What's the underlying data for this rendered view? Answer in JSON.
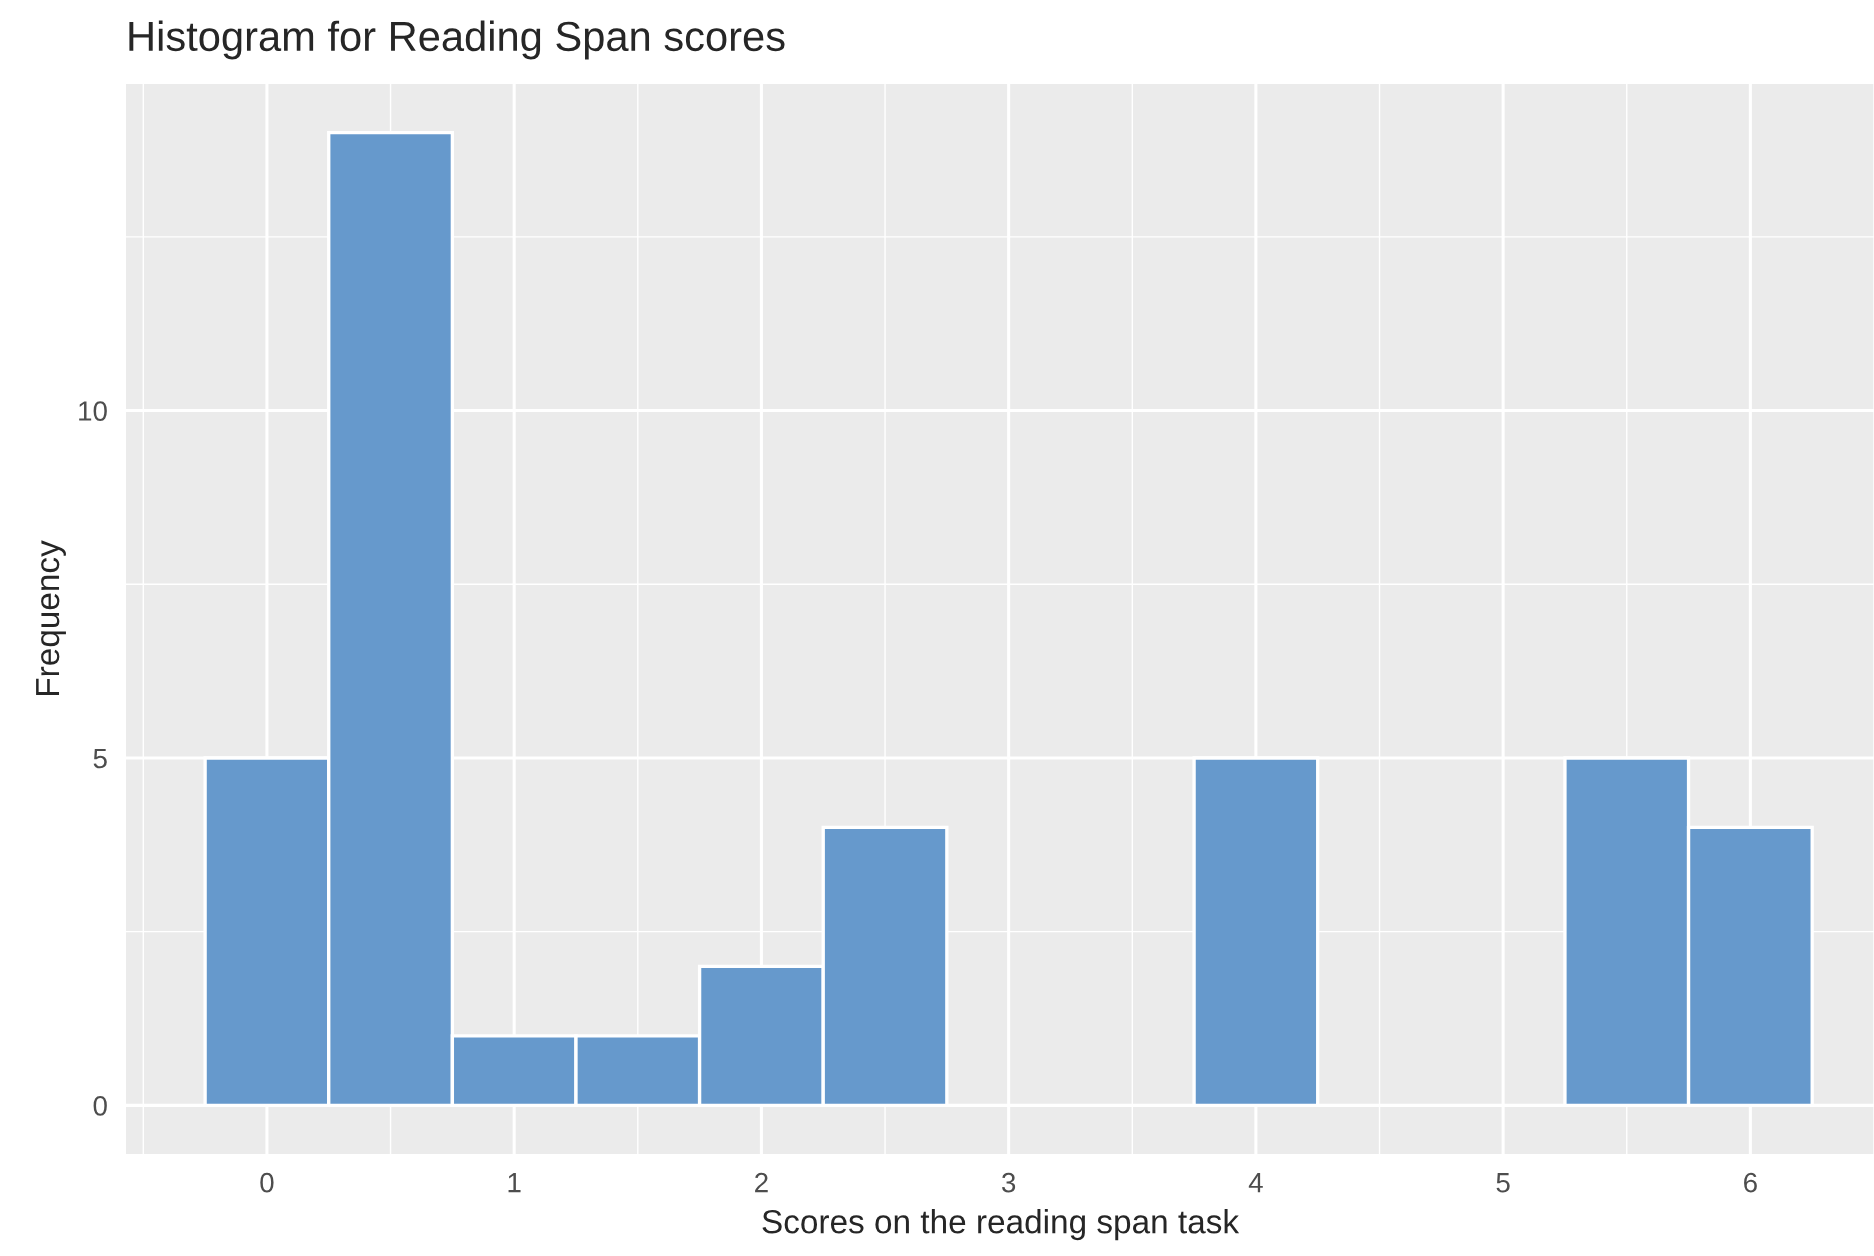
{
  "chart_data": {
    "type": "histogram",
    "title": "Histogram for Reading Span scores",
    "xlabel": "Scores on the reading span task",
    "ylabel": "Frequency",
    "bins": [
      -0.25,
      0.25,
      0.75,
      1.25,
      1.75,
      2.25,
      2.75,
      3.25,
      3.75,
      4.25,
      4.75,
      5.25,
      5.75,
      6.25
    ],
    "values": [
      5,
      14,
      1,
      1,
      2,
      4,
      0,
      0,
      5,
      0,
      0,
      5,
      4
    ],
    "color": "#6699cc",
    "xlim": [
      -0.57,
      6.5
    ],
    "xticks": [
      0,
      1,
      2,
      3,
      4,
      5,
      6
    ],
    "ylim": [
      -0.7,
      14.7
    ],
    "yticks": [
      0,
      5,
      10
    ],
    "grid": true
  }
}
